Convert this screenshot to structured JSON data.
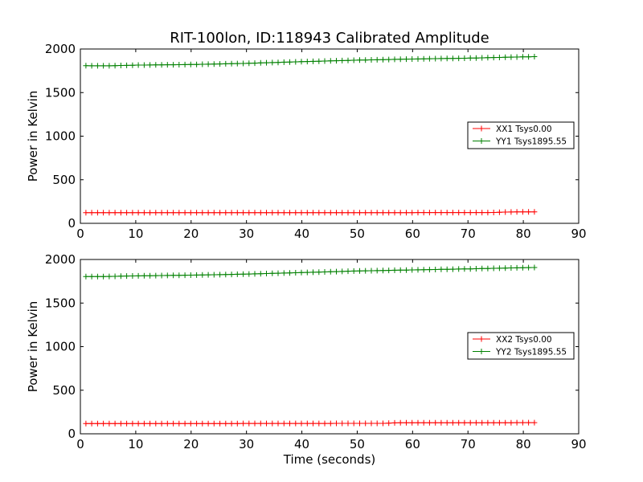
{
  "title": "RIT-100lon, ID:118943 Calibrated Amplitude",
  "xlabel": "Time (seconds)",
  "colors": {
    "xx": "#ff0000",
    "yy": "#008000"
  },
  "chart_data": [
    {
      "type": "line",
      "xlabel": "",
      "ylabel": "Power in Kelvin",
      "xlim": [
        0,
        90
      ],
      "ylim": [
        0,
        2000
      ],
      "xticks": [
        0,
        10,
        20,
        30,
        40,
        50,
        60,
        70,
        80,
        90
      ],
      "yticks": [
        0,
        500,
        1000,
        1500,
        2000
      ],
      "grid": false,
      "legend_position": "center-right",
      "x_start": 1,
      "x_end": 82,
      "n_points": 78,
      "series": [
        {
          "name": "XX1 Tsys0.00",
          "color_key": "xx",
          "anchors_x": [
            1,
            20,
            40,
            60,
            75,
            77,
            82
          ],
          "anchors_y": [
            122,
            122,
            123,
            123,
            124,
            130,
            132
          ]
        },
        {
          "name": "YY1 Tsys1895.55",
          "color_key": "yy",
          "anchors_x": [
            1,
            5,
            10,
            20,
            30,
            40,
            50,
            60,
            70,
            80,
            82
          ],
          "anchors_y": [
            1808,
            1807,
            1815,
            1822,
            1835,
            1855,
            1872,
            1885,
            1895,
            1910,
            1912
          ]
        }
      ]
    },
    {
      "type": "line",
      "xlabel": "Time (seconds)",
      "ylabel": "Power in Kelvin",
      "xlim": [
        0,
        90
      ],
      "ylim": [
        0,
        2000
      ],
      "xticks": [
        0,
        10,
        20,
        30,
        40,
        50,
        60,
        70,
        80,
        90
      ],
      "yticks": [
        0,
        500,
        1000,
        1500,
        2000
      ],
      "grid": false,
      "legend_position": "center-right",
      "x_start": 1,
      "x_end": 82,
      "n_points": 78,
      "series": [
        {
          "name": "XX2 Tsys0.00",
          "color_key": "xx",
          "anchors_x": [
            1,
            20,
            40,
            55,
            57,
            70,
            82
          ],
          "anchors_y": [
            118,
            118,
            119,
            120,
            126,
            127,
            128
          ]
        },
        {
          "name": "YY2 Tsys1895.55",
          "color_key": "yy",
          "anchors_x": [
            1,
            5,
            10,
            20,
            30,
            40,
            50,
            60,
            70,
            80,
            82
          ],
          "anchors_y": [
            1805,
            1805,
            1812,
            1820,
            1832,
            1850,
            1868,
            1880,
            1892,
            1906,
            1908
          ]
        }
      ]
    }
  ]
}
